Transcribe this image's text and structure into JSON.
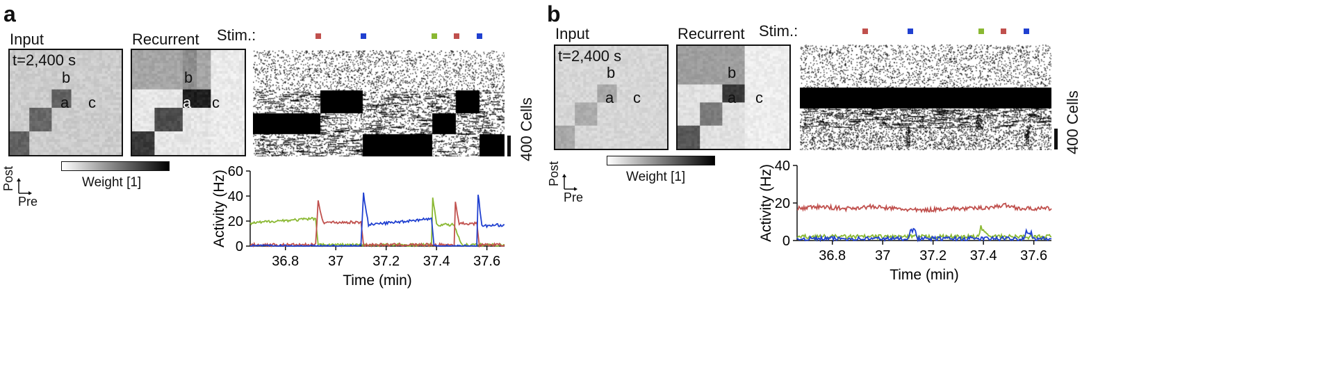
{
  "panels": [
    {
      "letter": "a",
      "input_label": "Input",
      "recurrent_label": "Recurrent",
      "stim_label": "Stim.:",
      "time_label": "t=2,400 s",
      "cluster_labels": {
        "a": "a",
        "b": "b",
        "c": "c"
      },
      "colorbar_label": "Weight [1]",
      "axes_post": "Post",
      "axes_pre": "Pre",
      "scalebar_label": "400 Cells",
      "stim_markers": [
        {
          "time": 36.93,
          "color": "#c0504d"
        },
        {
          "time": 37.11,
          "color": "#2040d0"
        },
        {
          "time": 37.39,
          "color": "#8ab832"
        },
        {
          "time": 37.48,
          "color": "#c0504d"
        },
        {
          "time": 37.57,
          "color": "#2040d0"
        }
      ]
    },
    {
      "letter": "b",
      "input_label": "Input",
      "recurrent_label": "Recurrent",
      "stim_label": "Stim.:",
      "time_label": "t=2,400 s",
      "cluster_labels": {
        "a": "a",
        "b": "b",
        "c": "c"
      },
      "colorbar_label": "Weight [1]",
      "axes_post": "Post",
      "axes_pre": "Pre",
      "scalebar_label": "400 Cells",
      "stim_markers": [
        {
          "time": 36.93,
          "color": "#c0504d"
        },
        {
          "time": 37.11,
          "color": "#2040d0"
        },
        {
          "time": 37.39,
          "color": "#8ab832"
        },
        {
          "time": 37.48,
          "color": "#c0504d"
        },
        {
          "time": 37.57,
          "color": "#2040d0"
        }
      ]
    }
  ],
  "chart_data": [
    {
      "type": "line",
      "panel": "a",
      "title": "",
      "xlabel": "Time (min)",
      "ylabel": "Activity (Hz)",
      "xlim": [
        36.66,
        37.67
      ],
      "ylim": [
        0,
        60
      ],
      "xticks": [
        36.8,
        37,
        37.2,
        37.4,
        37.6
      ],
      "xtick_labels": [
        "36.8",
        "37",
        "37.2",
        "37.4",
        "37.6"
      ],
      "yticks": [
        0,
        20,
        40,
        60
      ],
      "ytick_labels": [
        "0",
        "20",
        "40",
        "60"
      ],
      "series": [
        {
          "name": "green",
          "color": "#8ab832",
          "x": [
            36.66,
            36.75,
            36.85,
            36.92,
            36.93,
            36.95,
            37.1,
            37.38,
            37.385,
            37.4,
            37.47,
            37.5,
            37.67
          ],
          "y": [
            18,
            20,
            21,
            22,
            2,
            1,
            1,
            1,
            39,
            17,
            17,
            1,
            1
          ]
        },
        {
          "name": "red",
          "color": "#c0504d",
          "x": [
            36.66,
            36.92,
            36.93,
            36.95,
            37.1,
            37.11,
            37.38,
            37.47,
            37.475,
            37.49,
            37.56,
            37.57,
            37.67
          ],
          "y": [
            1,
            1,
            36,
            19,
            19,
            1,
            1,
            1,
            35,
            18,
            18,
            1,
            1
          ]
        },
        {
          "name": "blue",
          "color": "#2040d0",
          "x": [
            36.66,
            37.1,
            37.11,
            37.13,
            37.38,
            37.39,
            37.56,
            37.565,
            37.58,
            37.67
          ],
          "y": [
            0,
            0,
            42,
            17,
            22,
            0,
            0,
            42,
            16,
            17
          ]
        }
      ]
    },
    {
      "type": "line",
      "panel": "b",
      "title": "",
      "xlabel": "Time (min)",
      "ylabel": "Activity (Hz)",
      "xlim": [
        36.66,
        37.67
      ],
      "ylim": [
        0,
        40
      ],
      "xticks": [
        36.8,
        37,
        37.2,
        37.4,
        37.6
      ],
      "xtick_labels": [
        "36.8",
        "37",
        "37.2",
        "37.4",
        "37.6"
      ],
      "yticks": [
        0,
        20,
        40
      ],
      "ytick_labels": [
        "0",
        "20",
        "40"
      ],
      "series": [
        {
          "name": "red",
          "color": "#c0504d",
          "x": [
            36.66,
            36.75,
            36.85,
            36.95,
            37.05,
            37.15,
            37.25,
            37.35,
            37.45,
            37.48,
            37.55,
            37.67
          ],
          "y": [
            17,
            18,
            17,
            18,
            17,
            16,
            17,
            17,
            18,
            19,
            17,
            17
          ]
        },
        {
          "name": "green",
          "color": "#8ab832",
          "x": [
            36.66,
            37.38,
            37.39,
            37.4,
            37.42,
            37.67
          ],
          "y": [
            2,
            2,
            7,
            6,
            2,
            2
          ]
        },
        {
          "name": "blue",
          "color": "#2040d0",
          "x": [
            36.66,
            37.1,
            37.11,
            37.13,
            37.14,
            37.56,
            37.57,
            37.59,
            37.6,
            37.67
          ],
          "y": [
            1,
            1,
            6,
            5,
            1,
            1,
            5,
            4,
            1,
            1
          ]
        }
      ]
    }
  ]
}
